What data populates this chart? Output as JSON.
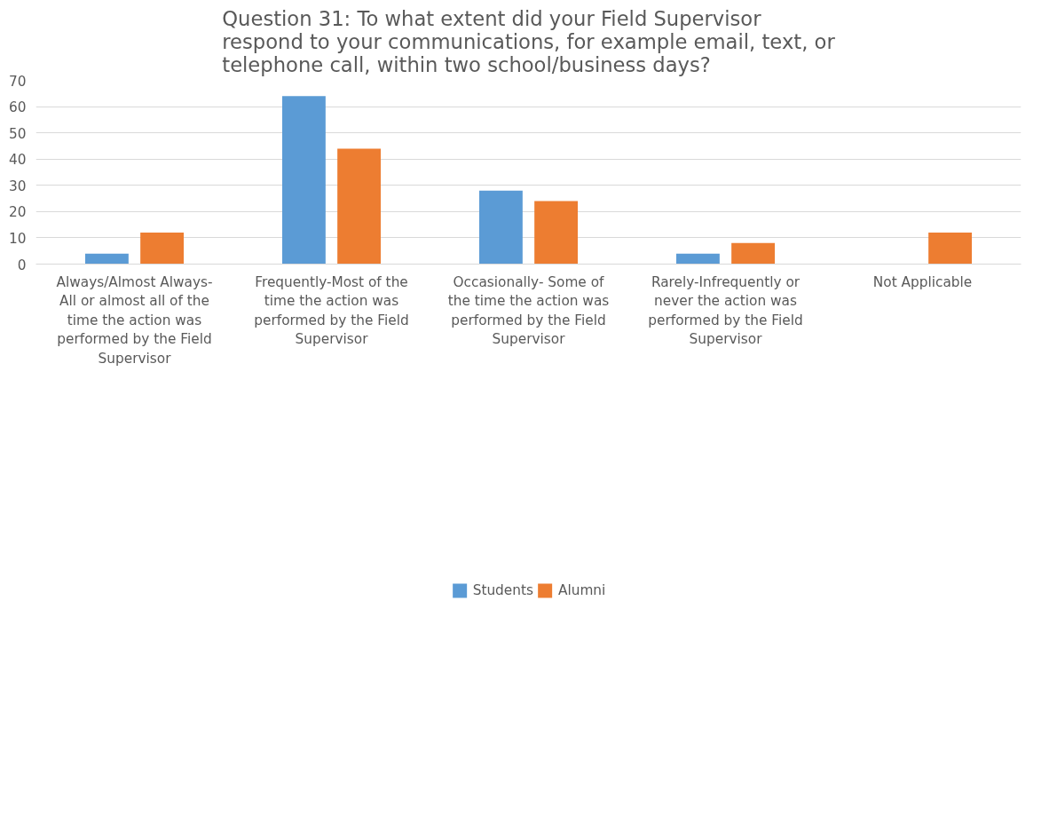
{
  "chart_data": {
    "type": "bar",
    "title": "Question 31: To what extent did your Field Supervisor respond to your communications, for example email, text, or telephone call, within two school/business days?",
    "categories": [
      "Always/Almost Always- All or almost all of the time the action was performed by the Field Supervisor",
      "Frequently-Most of the time the action was performed by the Field Supervisor",
      "Occasionally- Some of the time the action was performed by the Field Supervisor",
      "Rarely-Infrequently or never the action was performed by the Field Supervisor",
      "Not Applicable"
    ],
    "series": [
      {
        "name": "Students",
        "color": "#5b9bd5",
        "values": [
          4,
          64,
          28,
          4,
          0
        ]
      },
      {
        "name": "Alumni",
        "color": "#ed7d31",
        "values": [
          12,
          44,
          24,
          8,
          12
        ]
      }
    ],
    "ylim": [
      0,
      70
    ],
    "yticks": [
      0,
      10,
      20,
      30,
      40,
      50,
      60,
      70
    ],
    "grid": "y",
    "legend": "bottom"
  }
}
